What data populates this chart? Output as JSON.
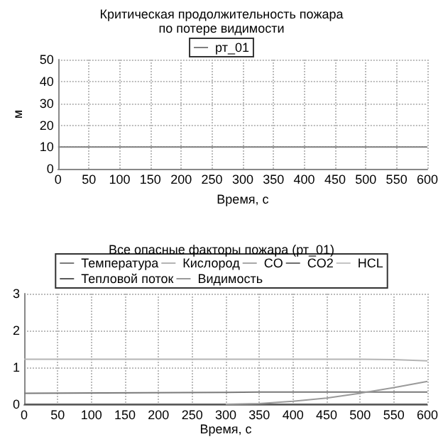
{
  "chart_data": [
    {
      "type": "line",
      "title": "Критическая продолжительность пожара\nпо потере видимости",
      "xlabel": "Время, с",
      "ylabel": "м",
      "x": [
        0,
        600
      ],
      "xlim": [
        0,
        600
      ],
      "xticks": [
        0,
        50,
        100,
        150,
        200,
        250,
        300,
        350,
        400,
        450,
        500,
        550,
        600
      ],
      "ylim": [
        0,
        50
      ],
      "yticks": [
        0,
        10,
        20,
        30,
        40,
        50
      ],
      "grid": true,
      "legend": "top",
      "marker": "none",
      "series": [
        {
          "name": "рт_01",
          "color": "#808080",
          "values": [
            10,
            10
          ]
        }
      ]
    },
    {
      "type": "line",
      "title": "Все опасные факторы пожара (рт_01)",
      "xlabel": "Время, с",
      "x": [
        0,
        300,
        350,
        400,
        450,
        500,
        550,
        600
      ],
      "xlim": [
        0,
        600
      ],
      "xticks": [
        0,
        50,
        100,
        150,
        200,
        250,
        300,
        350,
        400,
        450,
        500,
        550,
        600
      ],
      "ylim": [
        0,
        3
      ],
      "yticks": [
        0,
        1,
        2,
        3
      ],
      "grid": true,
      "legend": "top",
      "marker": "none",
      "series": [
        {
          "name": "Температура",
          "color": "#7a7a7a",
          "values": [
            0.3,
            0.32,
            0.33,
            0.33,
            0.33,
            0.33,
            0.33,
            0.33
          ]
        },
        {
          "name": "Кислород",
          "color": "#b4b4b4",
          "values": [
            1.22,
            1.22,
            1.22,
            1.22,
            1.22,
            1.22,
            1.21,
            1.18
          ]
        },
        {
          "name": "CO",
          "color": "#a8a8a8",
          "values": [
            null,
            null,
            null,
            null,
            null,
            null,
            null,
            null
          ]
        },
        {
          "name": "CO2",
          "color": "#6e6e6e",
          "values": [
            null,
            null,
            null,
            null,
            null,
            null,
            null,
            null
          ]
        },
        {
          "name": "HCL",
          "color": "#c4c4c4",
          "values": [
            null,
            null,
            null,
            null,
            null,
            null,
            null,
            null
          ]
        },
        {
          "name": "Тепловой поток",
          "color": "#5a5a5a",
          "values": [
            0,
            0,
            0,
            0,
            0,
            0,
            0,
            0
          ]
        },
        {
          "name": "Видимость",
          "color": "#9a9a9a",
          "values": [
            null,
            0,
            0.02,
            0.08,
            0.17,
            0.3,
            0.45,
            0.62
          ]
        }
      ]
    }
  ]
}
